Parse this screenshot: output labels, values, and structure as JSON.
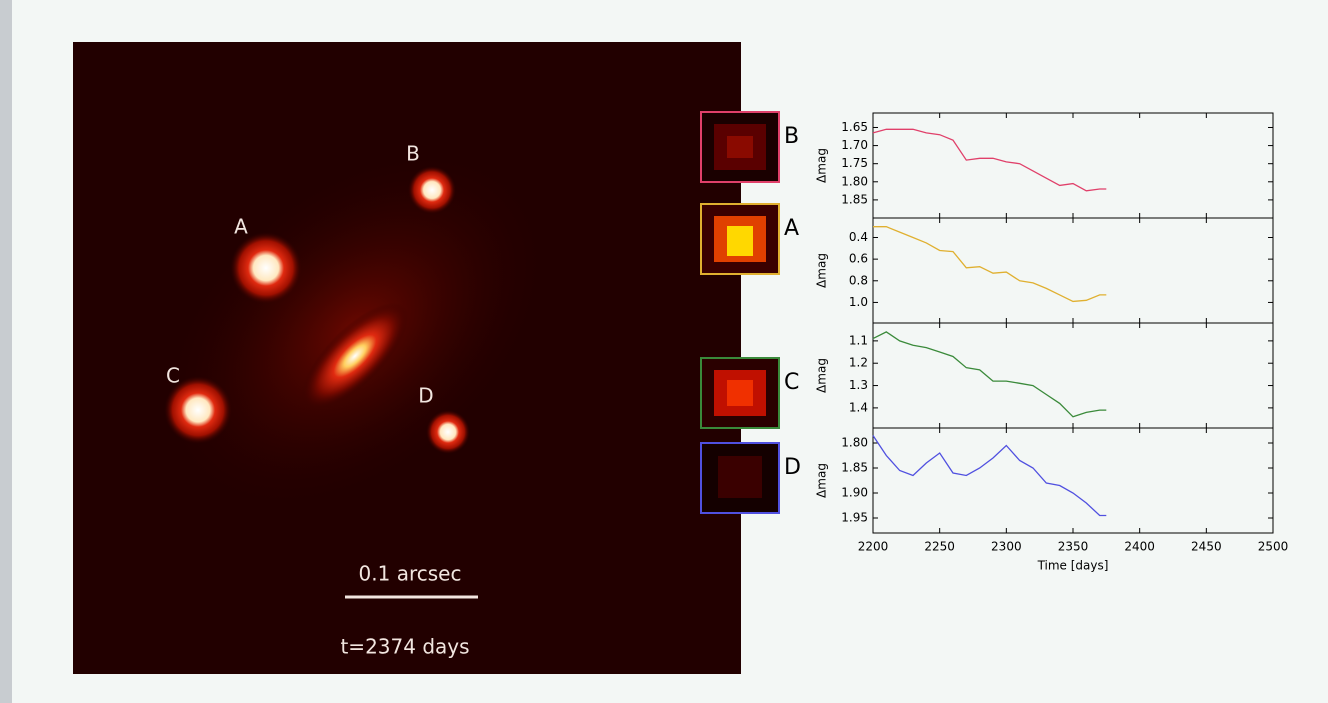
{
  "image": {
    "labels": [
      "A",
      "B",
      "C",
      "D"
    ],
    "scale_bar": "0.1 arcsec",
    "time": "t=2374 days"
  },
  "chart_data": [
    {
      "type": "line",
      "ylabel": "Δmag",
      "x": [
        2200,
        2210,
        2220,
        2230,
        2240,
        2250,
        2260,
        2270,
        2280,
        2290,
        2300,
        2310,
        2320,
        2330,
        2340,
        2350,
        2360,
        2370,
        2375
      ],
      "series": [
        {
          "name": "B",
          "color": "#e0406a",
          "values": [
            1.665,
            1.655,
            1.655,
            1.655,
            1.665,
            1.67,
            1.685,
            1.74,
            1.735,
            1.735,
            1.745,
            1.75,
            1.77,
            1.79,
            1.81,
            1.805,
            1.825,
            1.82,
            1.82
          ]
        }
      ],
      "xlim": [
        2200,
        2500
      ],
      "ylim": [
        1.9,
        1.61
      ],
      "yticks": [
        1.65,
        {
          "value": 1.7,
          "label": "1.70"
        },
        1.75,
        {
          "value": 1.8,
          "label": "1.80"
        },
        1.85
      ]
    },
    {
      "type": "line",
      "ylabel": "Δmag",
      "x": [
        2200,
        2210,
        2220,
        2230,
        2240,
        2250,
        2260,
        2270,
        2280,
        2290,
        2300,
        2310,
        2320,
        2330,
        2340,
        2350,
        2360,
        2370,
        2375
      ],
      "series": [
        {
          "name": "A",
          "color": "#e0b030",
          "values": [
            0.3,
            0.3,
            0.35,
            0.4,
            0.45,
            0.52,
            0.53,
            0.68,
            0.67,
            0.73,
            0.72,
            0.8,
            0.82,
            0.87,
            0.93,
            0.99,
            0.98,
            0.93,
            0.93
          ]
        }
      ],
      "xlim": [
        2200,
        2500
      ],
      "ylim": [
        1.19,
        0.22
      ],
      "yticks": [
        0.4,
        0.6,
        0.8,
        {
          "value": 1.0,
          "label": "1.0"
        }
      ]
    },
    {
      "type": "line",
      "ylabel": "Δmag",
      "x": [
        2200,
        2210,
        2220,
        2230,
        2240,
        2250,
        2260,
        2270,
        2280,
        2290,
        2300,
        2310,
        2320,
        2330,
        2340,
        2350,
        2360,
        2370,
        2375
      ],
      "series": [
        {
          "name": "C",
          "color": "#3a8a3a",
          "values": [
            1.09,
            1.06,
            1.1,
            1.12,
            1.13,
            1.15,
            1.17,
            1.22,
            1.23,
            1.28,
            1.28,
            1.29,
            1.3,
            1.34,
            1.38,
            1.44,
            1.42,
            1.41,
            1.41
          ]
        }
      ],
      "xlim": [
        2200,
        2500
      ],
      "ylim": [
        1.49,
        1.02
      ],
      "yticks": [
        1.1,
        1.2,
        1.3,
        1.4
      ]
    },
    {
      "type": "line",
      "ylabel": "Δmag",
      "xlabel": "Time [days]",
      "x": [
        2200,
        2210,
        2220,
        2230,
        2240,
        2250,
        2260,
        2270,
        2280,
        2290,
        2300,
        2310,
        2320,
        2330,
        2340,
        2350,
        2360,
        2370,
        2375
      ],
      "series": [
        {
          "name": "D",
          "color": "#5050e0",
          "values": [
            1.785,
            1.825,
            1.855,
            1.865,
            1.84,
            1.82,
            1.86,
            1.865,
            1.85,
            1.83,
            1.805,
            1.835,
            1.85,
            1.88,
            1.885,
            1.9,
            1.92,
            1.945,
            1.945
          ]
        }
      ],
      "xlim": [
        2200,
        2500
      ],
      "ylim": [
        1.98,
        1.77
      ],
      "yticks": [
        {
          "value": 1.8,
          "label": "1.80"
        },
        1.85,
        {
          "value": 1.9,
          "label": "1.90"
        },
        1.95
      ],
      "xticks": [
        2200,
        2250,
        2300,
        2350,
        2400,
        2450,
        2500
      ]
    }
  ]
}
